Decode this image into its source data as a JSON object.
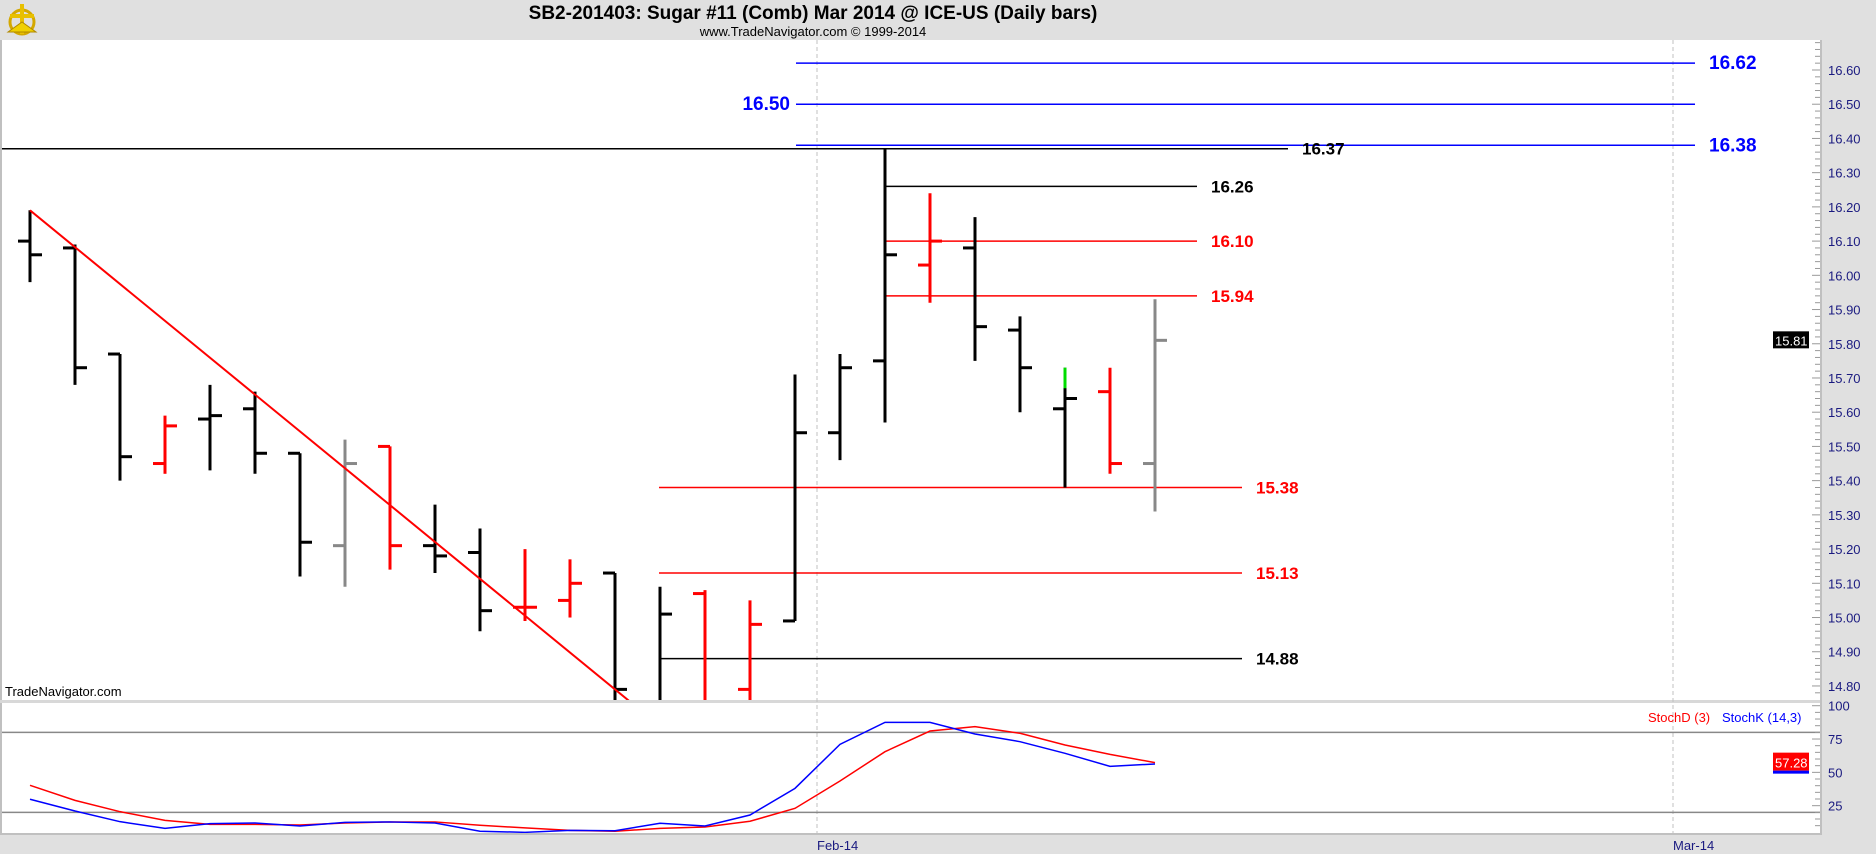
{
  "header": {
    "title": "SB2-201403:  Sugar #11 (Comb) Mar 2014 @ ICE-US  (Daily bars)",
    "subtitle": "www.TradeNavigator.com © 1999-2014",
    "logo_icon": "sextant-logo-icon"
  },
  "watermark": "TradeNavigator.com",
  "colors": {
    "up": "#000000",
    "down": "#ff0000",
    "neutral": "#888888",
    "highlight": "#00dd00",
    "stochD": "#ff0000",
    "stochK": "#0000ff",
    "level_blue": "#0000ff"
  },
  "chart_data": [
    {
      "type": "ohlc",
      "title": "SB2-201403:  Sugar #11 (Comb) Mar 2014 @ ICE-US  (Daily bars)",
      "ylim": [
        14.78,
        16.68
      ],
      "yticks": [
        "16.60",
        "16.50",
        "16.40",
        "16.30",
        "16.20",
        "16.10",
        "16.00",
        "15.90",
        "15.80",
        "15.70",
        "15.60",
        "15.50",
        "15.40",
        "15.30",
        "15.20",
        "15.10",
        "15.00",
        "14.90",
        "14.80"
      ],
      "xticks": [
        "Feb-14",
        "Mar-14"
      ],
      "last_price_label": "15.81",
      "grid": false,
      "bars": [
        {
          "o": 16.1,
          "h": 16.19,
          "l": 15.98,
          "c": 16.06,
          "color": "black"
        },
        {
          "o": 16.08,
          "h": 16.09,
          "l": 15.68,
          "c": 15.73,
          "color": "black"
        },
        {
          "o": 15.77,
          "h": 15.77,
          "l": 15.4,
          "c": 15.47,
          "color": "black"
        },
        {
          "o": 15.45,
          "h": 15.59,
          "l": 15.42,
          "c": 15.56,
          "color": "red"
        },
        {
          "o": 15.58,
          "h": 15.68,
          "l": 15.43,
          "c": 15.59,
          "color": "black"
        },
        {
          "o": 15.61,
          "h": 15.66,
          "l": 15.42,
          "c": 15.48,
          "color": "black"
        },
        {
          "o": 15.48,
          "h": 15.48,
          "l": 15.12,
          "c": 15.22,
          "color": "black"
        },
        {
          "o": 15.21,
          "h": 15.52,
          "l": 15.09,
          "c": 15.45,
          "color": "gray"
        },
        {
          "o": 15.5,
          "h": 15.5,
          "l": 15.14,
          "c": 15.21,
          "color": "red"
        },
        {
          "o": 15.21,
          "h": 15.33,
          "l": 15.13,
          "c": 15.18,
          "color": "black"
        },
        {
          "o": 15.19,
          "h": 15.26,
          "l": 14.96,
          "c": 15.02,
          "color": "black"
        },
        {
          "o": 15.03,
          "h": 15.2,
          "l": 14.99,
          "c": 15.03,
          "color": "red"
        },
        {
          "o": 15.05,
          "h": 15.17,
          "l": 15.0,
          "c": 15.1,
          "color": "red"
        },
        {
          "o": 15.13,
          "h": 15.13,
          "l": 14.7,
          "c": 14.79,
          "color": "black"
        },
        {
          "o": 14.75,
          "h": 15.09,
          "l": 14.7,
          "c": 15.01,
          "color": "black"
        },
        {
          "o": 15.07,
          "h": 15.08,
          "l": 14.65,
          "c": 14.7,
          "color": "red"
        },
        {
          "o": 14.79,
          "h": 15.05,
          "l": 14.7,
          "c": 14.98,
          "color": "red"
        },
        {
          "o": 14.99,
          "h": 15.71,
          "l": 14.99,
          "c": 15.54,
          "color": "black"
        },
        {
          "o": 15.54,
          "h": 15.77,
          "l": 15.46,
          "c": 15.73,
          "color": "black"
        },
        {
          "o": 15.75,
          "h": 16.37,
          "l": 15.57,
          "c": 16.06,
          "color": "black"
        },
        {
          "o": 16.03,
          "h": 16.24,
          "l": 15.92,
          "c": 16.1,
          "color": "red"
        },
        {
          "o": 16.08,
          "h": 16.17,
          "l": 15.75,
          "c": 15.85,
          "color": "black"
        },
        {
          "o": 15.84,
          "h": 15.88,
          "l": 15.6,
          "c": 15.73,
          "color": "black"
        },
        {
          "o": 15.61,
          "h": 15.73,
          "l": 15.38,
          "c": 15.64,
          "color": "black",
          "tip_color": "green",
          "tip_from": 15.67
        },
        {
          "o": 15.66,
          "h": 15.73,
          "l": 15.42,
          "c": 15.45,
          "color": "red"
        },
        {
          "o": 15.45,
          "h": 15.93,
          "l": 15.31,
          "c": 15.81,
          "color": "gray"
        }
      ],
      "trendline": {
        "from_bar": 1,
        "from_price": 16.19,
        "to_bar": 14,
        "to_price": 14.79,
        "color": "red"
      },
      "levels": [
        {
          "price": 16.62,
          "label": "16.62",
          "color": "blue"
        },
        {
          "price": 16.5,
          "label": "16.50",
          "color": "blue"
        },
        {
          "price": 16.38,
          "label": "16.38",
          "color": "blue"
        },
        {
          "price": 16.37,
          "label": "16.37",
          "color": "black"
        },
        {
          "price": 16.26,
          "label": "16.26",
          "color": "black"
        },
        {
          "price": 16.1,
          "label": "16.10",
          "color": "red"
        },
        {
          "price": 15.94,
          "label": "15.94",
          "color": "red"
        },
        {
          "price": 15.38,
          "label": "15.38",
          "color": "red"
        },
        {
          "price": 15.13,
          "label": "15.13",
          "color": "red"
        },
        {
          "price": 14.88,
          "label": "14.88",
          "color": "black"
        }
      ]
    },
    {
      "type": "line",
      "ylim": [
        0,
        100
      ],
      "yticks": [
        "100",
        "75",
        "50",
        "25"
      ],
      "reference_lines": [
        80,
        20
      ],
      "last_value_label": "57.28",
      "series": [
        {
          "name": "StochD (3)",
          "color": "#ff0000",
          "values": [
            40.3,
            29,
            20.5,
            14,
            11,
            11,
            10.5,
            12,
            12.8,
            12.8,
            10.3,
            8.3,
            6.5,
            5.8,
            8,
            9,
            13.3,
            23,
            43.5,
            65.5,
            81,
            84.3,
            79.3,
            70.5,
            63.5,
            57.3
          ]
        },
        {
          "name": "StochK (14,3)",
          "color": "#0000ff",
          "values": [
            29.8,
            21,
            13,
            8,
            11.5,
            12,
            9.8,
            12.5,
            12.8,
            12,
            5.8,
            5,
            6.5,
            6.2,
            11.8,
            9.8,
            18,
            38,
            71,
            87.5,
            87.5,
            78.8,
            73,
            64.3,
            54.5,
            56.3
          ]
        }
      ]
    }
  ]
}
